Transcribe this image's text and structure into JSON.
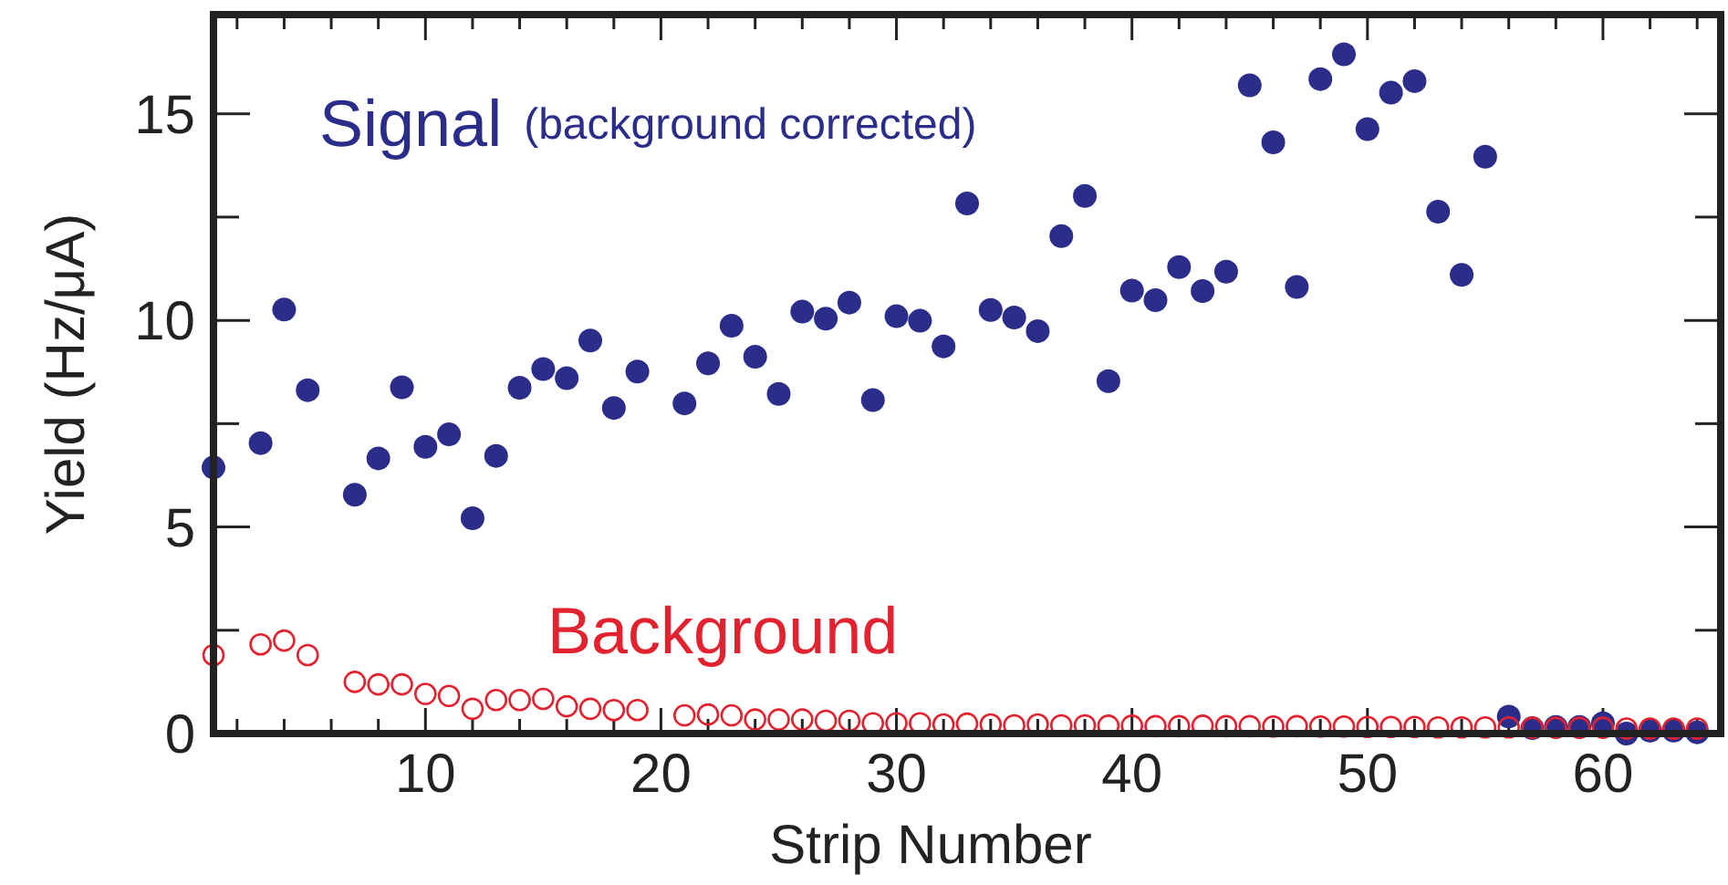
{
  "chart_data": {
    "type": "scatter",
    "xlabel": "Strip Number",
    "ylabel": "Yield (Hz/μA)",
    "xlim": [
      1,
      65
    ],
    "ylim": [
      0,
      17.4
    ],
    "xticks": [
      {
        "value": 2,
        "label": null
      },
      {
        "value": 4,
        "label": null
      },
      {
        "value": 6,
        "label": null
      },
      {
        "value": 8,
        "label": null
      },
      10,
      {
        "value": 12,
        "label": null
      },
      {
        "value": 14,
        "label": null
      },
      {
        "value": 16,
        "label": null
      },
      {
        "value": 18,
        "label": null
      },
      20,
      {
        "value": 22,
        "label": null
      },
      {
        "value": 24,
        "label": null
      },
      {
        "value": 26,
        "label": null
      },
      {
        "value": 28,
        "label": null
      },
      30,
      {
        "value": 32,
        "label": null
      },
      {
        "value": 34,
        "label": null
      },
      {
        "value": 36,
        "label": null
      },
      {
        "value": 38,
        "label": null
      },
      40,
      {
        "value": 42,
        "label": null
      },
      {
        "value": 44,
        "label": null
      },
      {
        "value": 46,
        "label": null
      },
      {
        "value": 48,
        "label": null
      },
      50,
      {
        "value": 52,
        "label": null
      },
      {
        "value": 54,
        "label": null
      },
      {
        "value": 56,
        "label": null
      },
      {
        "value": 58,
        "label": null
      },
      60,
      {
        "value": 62,
        "label": null
      },
      {
        "value": 64,
        "label": null
      }
    ],
    "yticks": [
      0,
      {
        "value": 2.5,
        "label": null
      },
      5,
      {
        "value": 7.5,
        "label": null
      },
      10,
      {
        "value": 12.5,
        "label": null
      },
      15
    ],
    "annotations": [
      "(background corrected)"
    ],
    "series": [
      {
        "name": "Signal",
        "color": "#2b2d8a",
        "marker": "circle",
        "x": [
          1,
          3,
          4,
          5,
          7,
          8,
          9,
          10,
          11,
          12,
          13,
          14,
          15,
          16,
          17,
          18,
          19,
          21,
          22,
          23,
          24,
          25,
          26,
          27,
          28,
          29,
          30,
          31,
          32,
          33,
          34,
          35,
          36,
          37,
          38,
          39,
          40,
          41,
          42,
          43,
          44,
          45,
          46,
          47,
          48,
          49,
          50,
          51,
          52,
          53,
          54,
          55,
          56,
          57,
          58,
          59,
          60,
          61,
          62,
          63,
          64
        ],
        "values": [
          6.44,
          7.03,
          10.26,
          8.31,
          5.78,
          6.66,
          8.38,
          6.94,
          7.24,
          5.21,
          6.72,
          8.37,
          8.82,
          8.6,
          9.51,
          7.88,
          8.76,
          7.99,
          8.96,
          9.87,
          9.12,
          8.22,
          10.21,
          10.04,
          10.43,
          8.07,
          10.1,
          9.99,
          9.37,
          12.83,
          10.25,
          10.07,
          9.74,
          12.04,
          13.01,
          8.53,
          10.72,
          10.49,
          11.29,
          10.71,
          11.18,
          15.69,
          14.31,
          10.81,
          15.84,
          16.44,
          14.63,
          15.51,
          15.79,
          12.63,
          11.1,
          13.96,
          0.41,
          0.13,
          0.16,
          0.16,
          0.25,
          0.0,
          0.07,
          0.07,
          0.03
        ]
      },
      {
        "name": "Background",
        "color": "#e3222f",
        "marker": "circle-open",
        "x": [
          1,
          3,
          4,
          5,
          7,
          8,
          9,
          10,
          11,
          12,
          13,
          14,
          15,
          16,
          17,
          18,
          19,
          21,
          22,
          23,
          24,
          25,
          26,
          27,
          28,
          29,
          30,
          31,
          32,
          33,
          34,
          35,
          36,
          37,
          38,
          39,
          40,
          41,
          42,
          43,
          44,
          45,
          46,
          47,
          48,
          49,
          50,
          51,
          52,
          53,
          54,
          55,
          56,
          57,
          58,
          59,
          60,
          61,
          62,
          63,
          64
        ],
        "values": [
          1.9,
          2.16,
          2.25,
          1.9,
          1.25,
          1.19,
          1.19,
          0.96,
          0.91,
          0.6,
          0.81,
          0.81,
          0.84,
          0.66,
          0.6,
          0.57,
          0.57,
          0.44,
          0.46,
          0.44,
          0.34,
          0.34,
          0.34,
          0.31,
          0.31,
          0.25,
          0.25,
          0.25,
          0.22,
          0.24,
          0.22,
          0.2,
          0.22,
          0.2,
          0.2,
          0.19,
          0.19,
          0.18,
          0.18,
          0.19,
          0.18,
          0.18,
          0.17,
          0.18,
          0.17,
          0.17,
          0.16,
          0.16,
          0.16,
          0.15,
          0.15,
          0.15,
          0.15,
          0.14,
          0.14,
          0.14,
          0.14,
          0.12,
          0.12,
          0.12,
          0.12
        ]
      }
    ]
  }
}
